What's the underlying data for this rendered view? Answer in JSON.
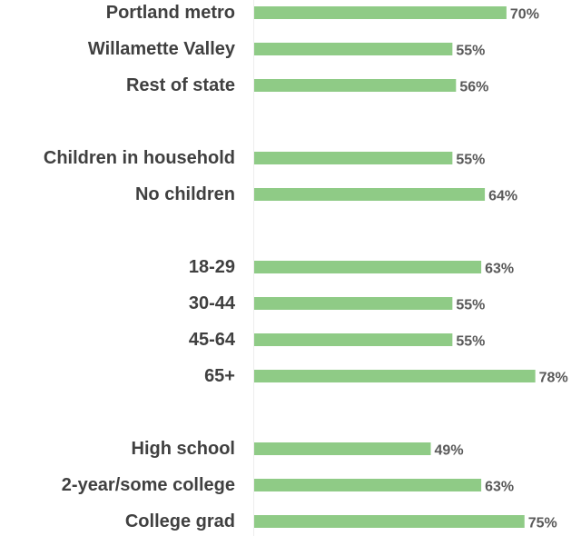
{
  "chart_data": {
    "type": "bar",
    "orientation": "horizontal",
    "title": "",
    "xlabel": "",
    "ylabel": "",
    "xlim": [
      0,
      100
    ],
    "grid": false,
    "legend": "none",
    "bar_color": "#8fcb86",
    "label_color": "#404040",
    "value_color": "#595959",
    "categories": [
      "Portland metro",
      "Willamette Valley",
      "Rest of state",
      "Children in household",
      "No children",
      "18-29",
      "30-44",
      "45-64",
      "65+",
      "High school",
      "2-year/some college",
      "College grad"
    ],
    "groups": [
      [
        0,
        1,
        2
      ],
      [
        3,
        4
      ],
      [
        5,
        6,
        7,
        8
      ],
      [
        9,
        10,
        11
      ]
    ],
    "values": [
      70,
      55,
      56,
      55,
      64,
      63,
      55,
      55,
      78,
      49,
      63,
      75
    ],
    "value_labels": [
      "70%",
      "55%",
      "56%",
      "55%",
      "64%",
      "63%",
      "55%",
      "55%",
      "78%",
      "49%",
      "63%",
      "75%"
    ]
  }
}
